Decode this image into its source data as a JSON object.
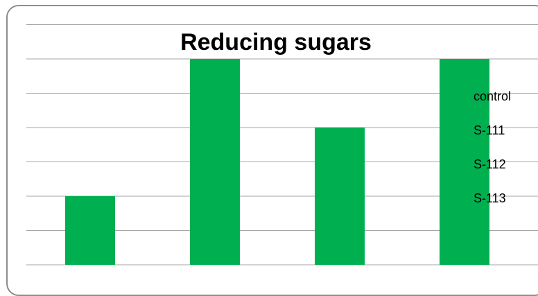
{
  "chart_data": {
    "type": "bar",
    "title": "Reducing sugars",
    "xlabel": "",
    "ylabel": "",
    "categories": [
      "control",
      "S-111",
      "S-112",
      "S-113"
    ],
    "values": [
      1,
      3,
      2,
      3
    ],
    "ylim": [
      0,
      4
    ],
    "grid": true,
    "legend_position": "right",
    "bar_color": "#00b050",
    "legend": [
      "control",
      "S-111",
      "S-112",
      "S-113"
    ]
  }
}
